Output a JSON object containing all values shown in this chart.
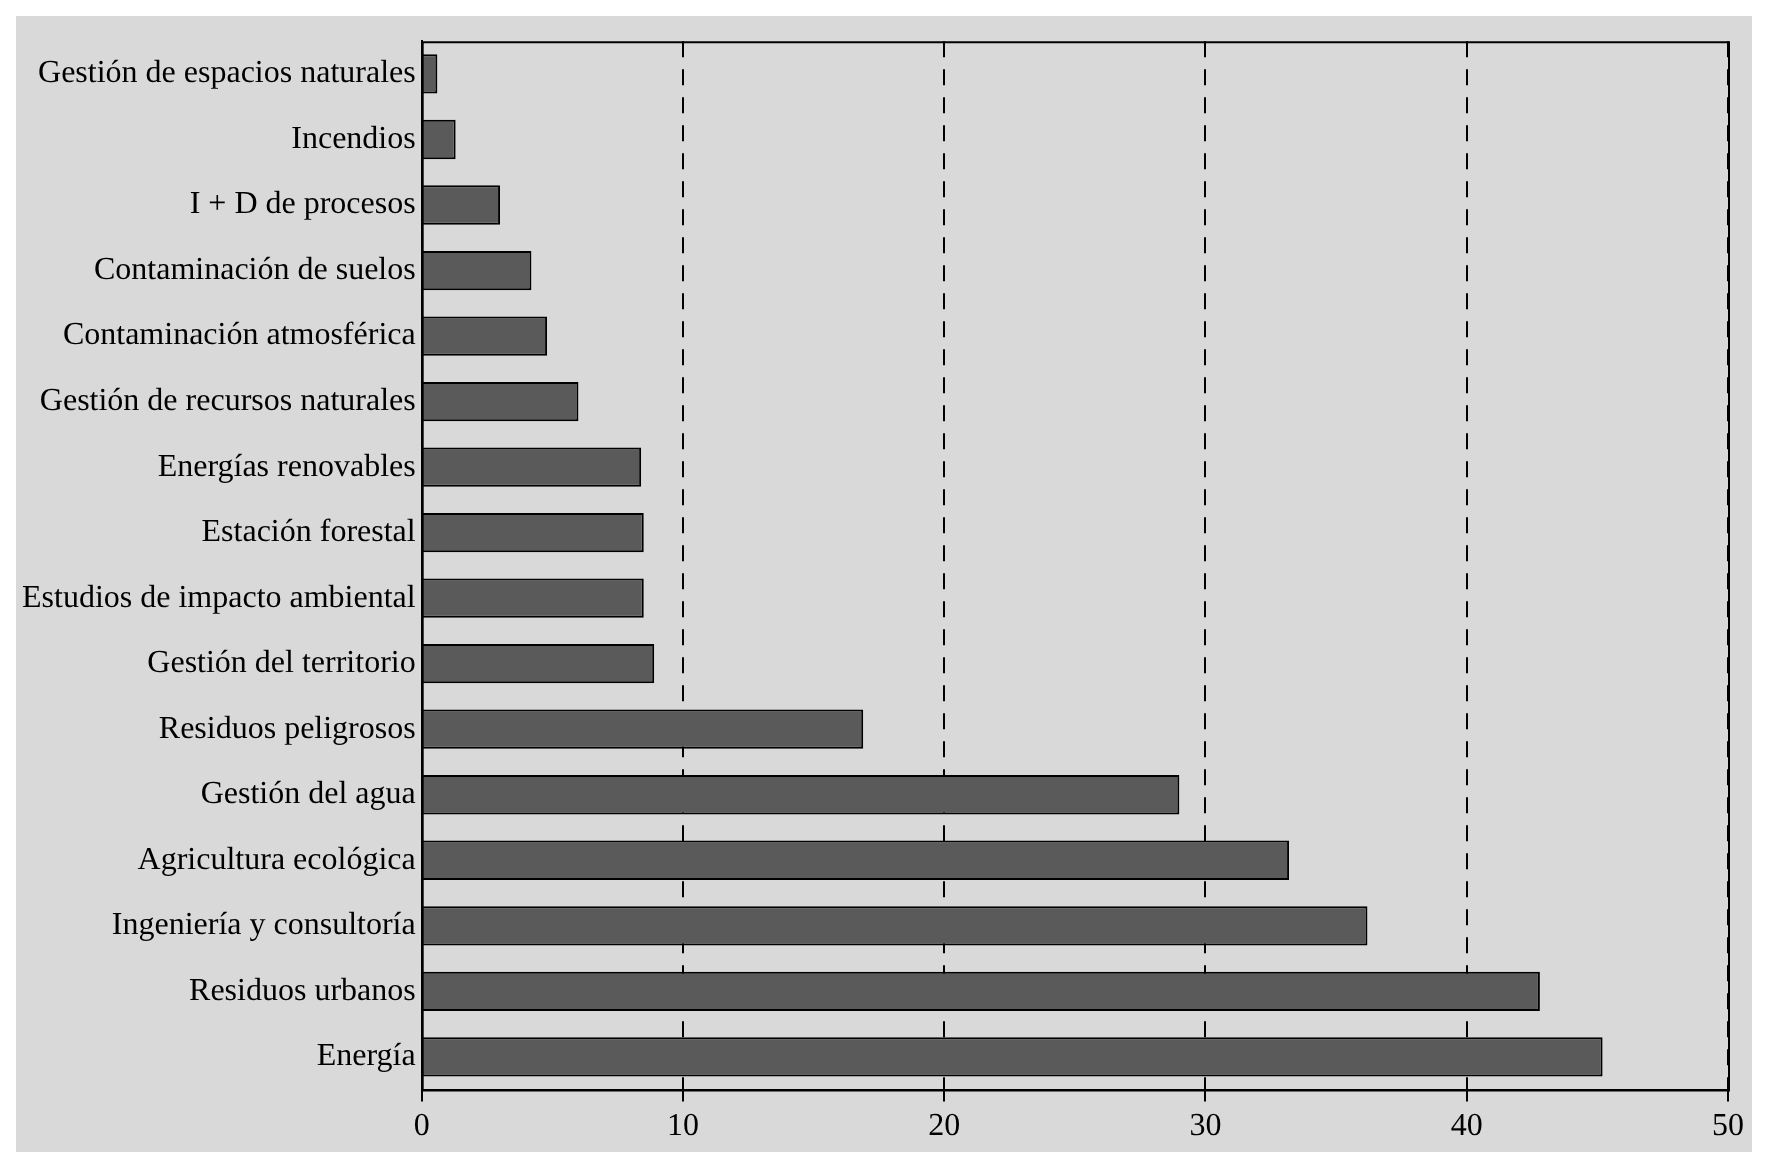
{
  "chart_data": {
    "type": "bar",
    "orientation": "horizontal",
    "categories": [
      "Gestión de espacios naturales",
      "Incendios",
      "I + D de procesos",
      "Contaminación de suelos",
      "Contaminación atmosférica",
      "Gestión de recursos naturales",
      "Energías renovables",
      "Estación forestal",
      "Estudios de impacto ambiental",
      "Gestión del territorio",
      "Residuos peligrosos",
      "Gestión del agua",
      "Agricultura ecológica",
      "Ingeniería y consultoría",
      "Residuos urbanos",
      "Energía"
    ],
    "values": [
      0.6,
      1.3,
      3.0,
      4.2,
      4.8,
      6.0,
      8.4,
      8.5,
      8.5,
      8.9,
      16.9,
      29.0,
      33.2,
      36.2,
      42.8,
      45.2
    ],
    "color": "#5a5a5a",
    "xlim": [
      0,
      50
    ],
    "xticks": [
      0,
      10,
      20,
      30,
      40,
      50
    ],
    "grid": "x"
  }
}
